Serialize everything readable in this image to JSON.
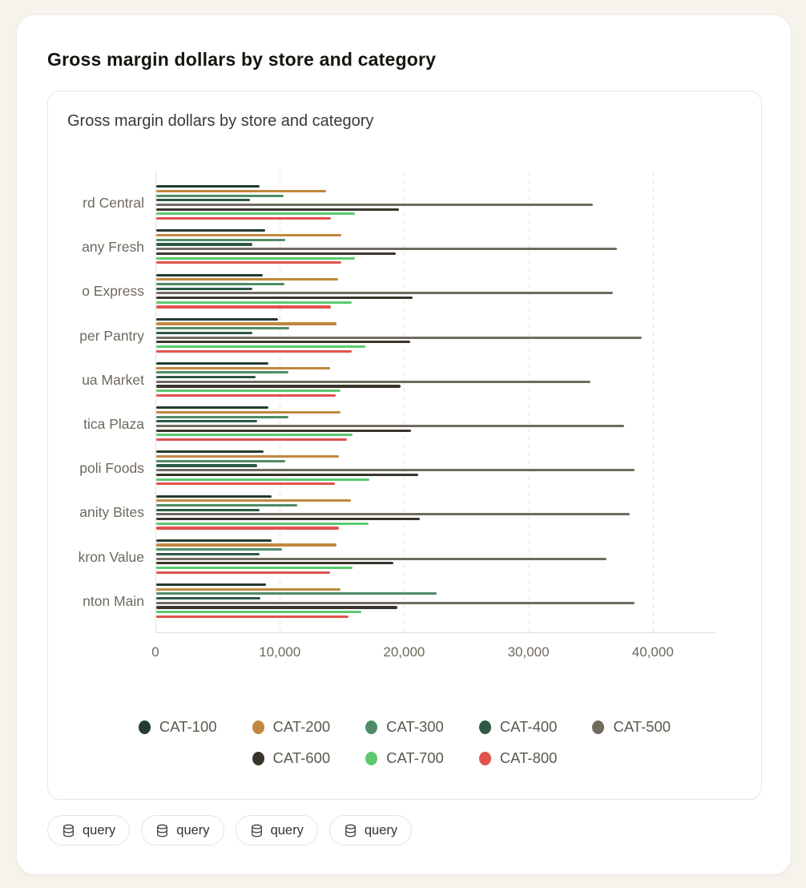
{
  "page": {
    "title": "Gross margin dollars by store and category"
  },
  "chart": {
    "title": "Gross margin dollars by store and category"
  },
  "chart_data": {
    "type": "bar",
    "orientation": "horizontal",
    "title": "Gross margin dollars by store and category",
    "categories": [
      "rd Central",
      "any Fresh",
      "o Express",
      "per Pantry",
      "ua Market",
      "tica Plaza",
      "poli Foods",
      "anity Bites",
      "kron Value",
      "nton Main"
    ],
    "series": [
      {
        "name": "CAT-100",
        "color": "#233c2f",
        "values": [
          8300,
          8750,
          8550,
          9800,
          9050,
          9050,
          8650,
          9250,
          9300,
          8850
        ]
      },
      {
        "name": "CAT-200",
        "color": "#c1873e",
        "values": [
          13650,
          14900,
          14650,
          14500,
          14000,
          14850,
          14700,
          15650,
          14500,
          14850
        ]
      },
      {
        "name": "CAT-300",
        "color": "#4f8c66",
        "values": [
          10250,
          10350,
          10300,
          10700,
          10600,
          10600,
          10350,
          11350,
          10100,
          22550
        ]
      },
      {
        "name": "CAT-400",
        "color": "#2e5945",
        "values": [
          7550,
          7750,
          7750,
          7750,
          8000,
          8100,
          8100,
          8300,
          8300,
          8400
        ]
      },
      {
        "name": "CAT-500",
        "color": "#6f6b5f",
        "values": [
          35100,
          37050,
          36750,
          39050,
          34950,
          37600,
          38450,
          38100,
          36200,
          38450
        ]
      },
      {
        "name": "CAT-600",
        "color": "#3a352c",
        "values": [
          19500,
          19250,
          20600,
          20400,
          19650,
          20500,
          21100,
          21200,
          19100,
          19400
        ]
      },
      {
        "name": "CAT-700",
        "color": "#5cc96f",
        "values": [
          15950,
          15950,
          15750,
          16800,
          14800,
          15800,
          17150,
          17100,
          15800,
          16500
        ]
      },
      {
        "name": "CAT-800",
        "color": "#e0534e",
        "values": [
          14050,
          14900,
          14050,
          15750,
          14450,
          15350,
          14400,
          14700,
          14000,
          15450
        ]
      }
    ],
    "x_ticks": [
      "0",
      "10,000",
      "20,000",
      "30,000",
      "40,000"
    ],
    "x_tick_values": [
      0,
      10000,
      20000,
      30000,
      40000
    ],
    "xlim": [
      0,
      45000
    ],
    "grid": "dashed-vertical",
    "legend_position": "bottom",
    "legend_rows": [
      [
        "CAT-100",
        "CAT-200",
        "CAT-300",
        "CAT-400",
        "CAT-500"
      ],
      [
        "CAT-600",
        "CAT-700",
        "CAT-800"
      ]
    ]
  },
  "actions": {
    "query_buttons": [
      {
        "label": "query",
        "icon": "database-icon"
      },
      {
        "label": "query",
        "icon": "database-icon"
      },
      {
        "label": "query",
        "icon": "database-icon"
      },
      {
        "label": "query",
        "icon": "database-icon"
      }
    ]
  }
}
